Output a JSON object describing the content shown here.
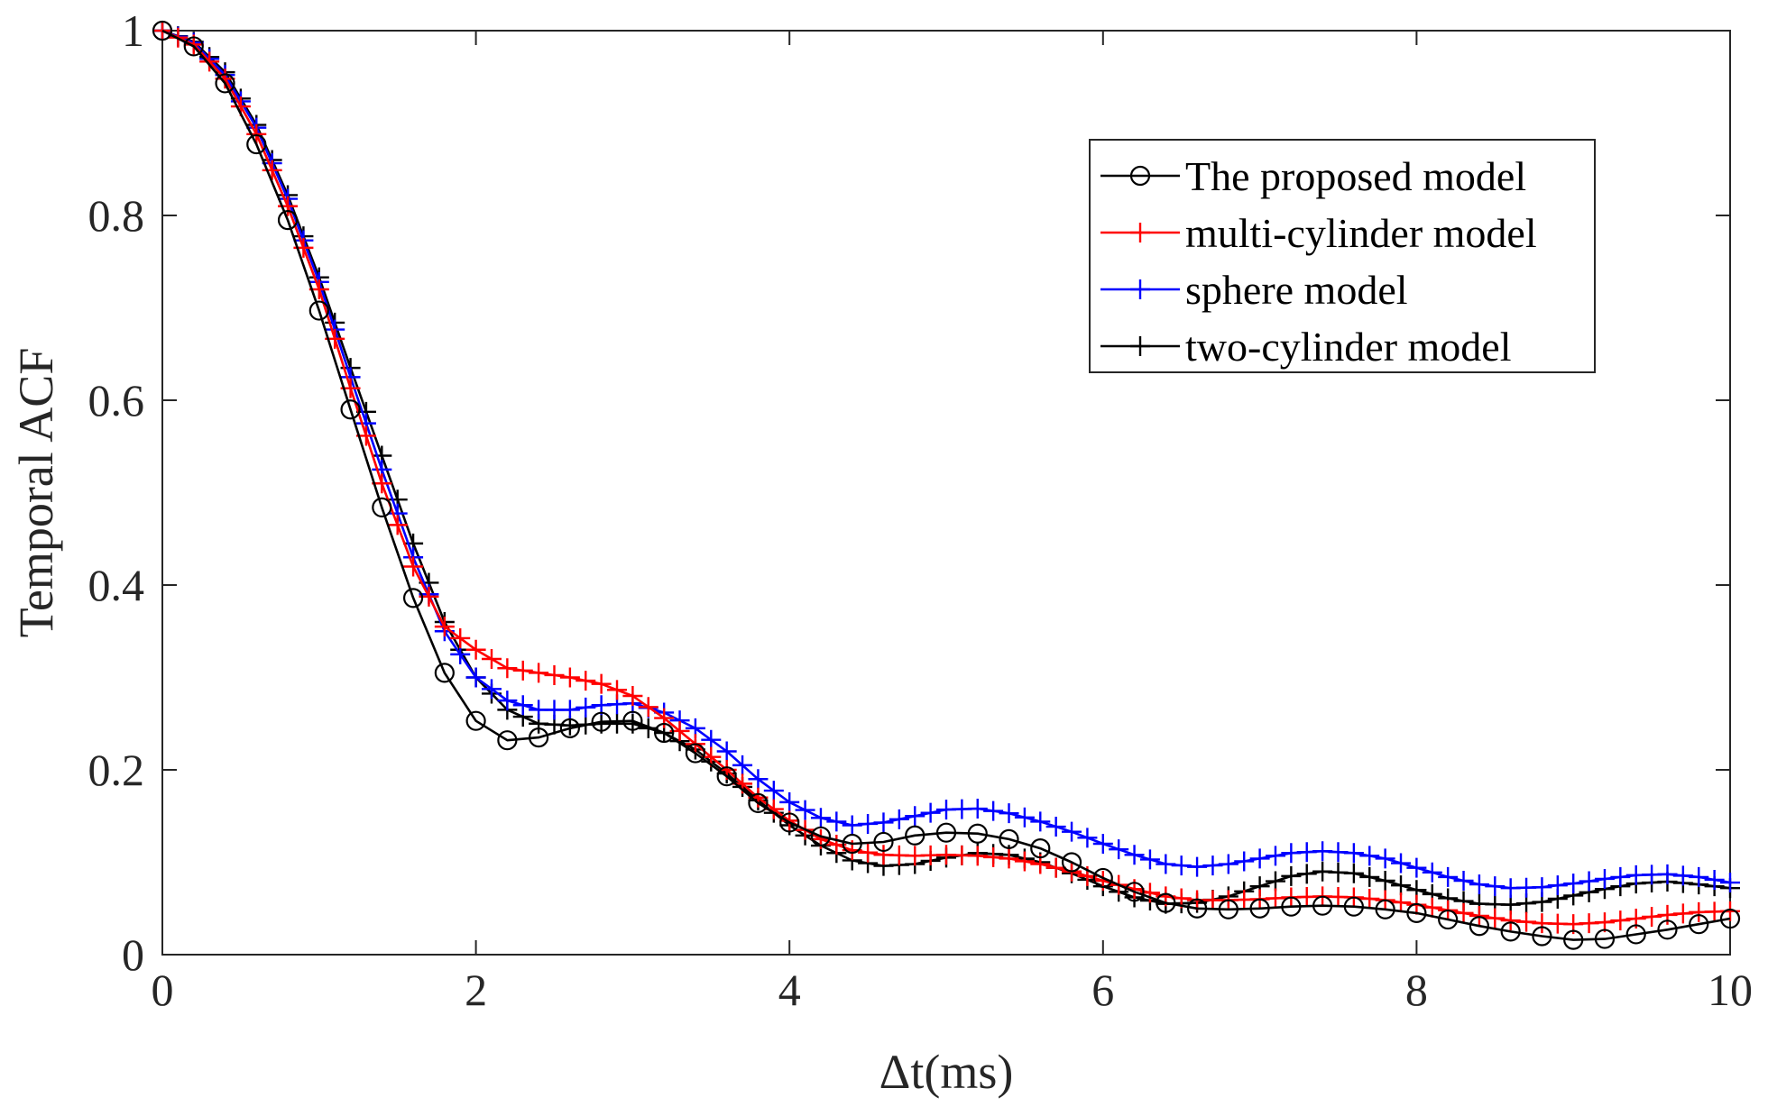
{
  "chart_data": {
    "type": "line",
    "title": "",
    "xlabel": "Δt(ms)",
    "ylabel": "Temporal ACF",
    "xlim": [
      0,
      10
    ],
    "ylim": [
      0,
      1
    ],
    "xticks": [
      0,
      2,
      4,
      6,
      8,
      10
    ],
    "xtick_labels": [
      "0",
      "2",
      "4",
      "6",
      "8",
      "10"
    ],
    "yticks": [
      0,
      0.2,
      0.4,
      0.6,
      0.8,
      1
    ],
    "ytick_labels": [
      "0",
      "0.2",
      "0.4",
      "0.6",
      "0.8",
      "1"
    ],
    "grid": false,
    "box": true,
    "legend_position": "top-right",
    "series": [
      {
        "name": "The proposed model",
        "color": "#000000",
        "marker": "circle",
        "marker_step": 0.2,
        "points": [
          [
            0,
            1
          ],
          [
            0.2,
            0.983
          ],
          [
            0.4,
            0.943
          ],
          [
            0.6,
            0.877
          ],
          [
            0.8,
            0.795
          ],
          [
            1.0,
            0.697
          ],
          [
            1.2,
            0.59
          ],
          [
            1.4,
            0.484
          ],
          [
            1.6,
            0.386
          ],
          [
            1.8,
            0.305
          ],
          [
            2.0,
            0.253
          ],
          [
            2.2,
            0.232
          ],
          [
            2.4,
            0.235
          ],
          [
            2.6,
            0.245
          ],
          [
            2.8,
            0.252
          ],
          [
            3.0,
            0.253
          ],
          [
            3.2,
            0.24
          ],
          [
            3.4,
            0.218
          ],
          [
            3.6,
            0.193
          ],
          [
            3.8,
            0.164
          ],
          [
            4.0,
            0.143
          ],
          [
            4.2,
            0.128
          ],
          [
            4.4,
            0.12
          ],
          [
            4.6,
            0.122
          ],
          [
            4.8,
            0.129
          ],
          [
            5.0,
            0.132
          ],
          [
            5.2,
            0.131
          ],
          [
            5.4,
            0.125
          ],
          [
            5.6,
            0.115
          ],
          [
            5.8,
            0.1
          ],
          [
            6.0,
            0.083
          ],
          [
            6.2,
            0.068
          ],
          [
            6.4,
            0.056
          ],
          [
            6.6,
            0.05
          ],
          [
            6.8,
            0.049
          ],
          [
            7.0,
            0.05
          ],
          [
            7.2,
            0.052
          ],
          [
            7.4,
            0.053
          ],
          [
            7.6,
            0.052
          ],
          [
            7.8,
            0.049
          ],
          [
            8.0,
            0.045
          ],
          [
            8.2,
            0.038
          ],
          [
            8.4,
            0.031
          ],
          [
            8.6,
            0.025
          ],
          [
            8.8,
            0.02
          ],
          [
            9.0,
            0.016
          ],
          [
            9.2,
            0.017
          ],
          [
            9.4,
            0.022
          ],
          [
            9.6,
            0.027
          ],
          [
            9.8,
            0.033
          ],
          [
            10.0,
            0.039
          ]
        ]
      },
      {
        "name": "multi-cylinder model",
        "color": "#ff0000",
        "marker": "plus",
        "marker_step": 0.1,
        "points": [
          [
            0,
            1
          ],
          [
            0.2,
            0.985
          ],
          [
            0.4,
            0.948
          ],
          [
            0.6,
            0.888
          ],
          [
            0.8,
            0.81
          ],
          [
            1.0,
            0.72
          ],
          [
            1.2,
            0.613
          ],
          [
            1.4,
            0.51
          ],
          [
            1.6,
            0.42
          ],
          [
            1.8,
            0.355
          ],
          [
            2.0,
            0.33
          ],
          [
            2.2,
            0.31
          ],
          [
            2.4,
            0.305
          ],
          [
            2.6,
            0.3
          ],
          [
            2.8,
            0.293
          ],
          [
            3.0,
            0.28
          ],
          [
            3.2,
            0.256
          ],
          [
            3.4,
            0.228
          ],
          [
            3.6,
            0.2
          ],
          [
            3.8,
            0.17
          ],
          [
            4.0,
            0.145
          ],
          [
            4.2,
            0.125
          ],
          [
            4.4,
            0.113
          ],
          [
            4.6,
            0.108
          ],
          [
            4.8,
            0.107
          ],
          [
            5.0,
            0.108
          ],
          [
            5.2,
            0.107
          ],
          [
            5.4,
            0.104
          ],
          [
            5.6,
            0.098
          ],
          [
            5.8,
            0.09
          ],
          [
            6.0,
            0.08
          ],
          [
            6.2,
            0.071
          ],
          [
            6.4,
            0.063
          ],
          [
            6.6,
            0.059
          ],
          [
            6.8,
            0.059
          ],
          [
            7.0,
            0.06
          ],
          [
            7.2,
            0.062
          ],
          [
            7.4,
            0.063
          ],
          [
            7.6,
            0.062
          ],
          [
            7.8,
            0.059
          ],
          [
            8.0,
            0.054
          ],
          [
            8.2,
            0.048
          ],
          [
            8.4,
            0.042
          ],
          [
            8.6,
            0.037
          ],
          [
            8.8,
            0.034
          ],
          [
            9.0,
            0.033
          ],
          [
            9.2,
            0.035
          ],
          [
            9.4,
            0.039
          ],
          [
            9.6,
            0.043
          ],
          [
            9.8,
            0.046
          ],
          [
            10.0,
            0.047
          ]
        ]
      },
      {
        "name": "sphere model",
        "color": "#0000ff",
        "marker": "plus",
        "marker_step": 0.1,
        "points": [
          [
            0,
            1
          ],
          [
            0.2,
            0.987
          ],
          [
            0.4,
            0.952
          ],
          [
            0.6,
            0.895
          ],
          [
            0.8,
            0.818
          ],
          [
            1.0,
            0.728
          ],
          [
            1.2,
            0.625
          ],
          [
            1.4,
            0.525
          ],
          [
            1.6,
            0.43
          ],
          [
            1.8,
            0.35
          ],
          [
            2.0,
            0.3
          ],
          [
            2.2,
            0.275
          ],
          [
            2.4,
            0.265
          ],
          [
            2.6,
            0.265
          ],
          [
            2.8,
            0.27
          ],
          [
            3.0,
            0.272
          ],
          [
            3.2,
            0.262
          ],
          [
            3.4,
            0.245
          ],
          [
            3.6,
            0.22
          ],
          [
            3.8,
            0.19
          ],
          [
            4.0,
            0.165
          ],
          [
            4.2,
            0.148
          ],
          [
            4.4,
            0.14
          ],
          [
            4.6,
            0.143
          ],
          [
            4.8,
            0.15
          ],
          [
            5.0,
            0.157
          ],
          [
            5.2,
            0.158
          ],
          [
            5.4,
            0.153
          ],
          [
            5.6,
            0.144
          ],
          [
            5.8,
            0.133
          ],
          [
            6.0,
            0.12
          ],
          [
            6.2,
            0.108
          ],
          [
            6.4,
            0.098
          ],
          [
            6.6,
            0.095
          ],
          [
            6.8,
            0.098
          ],
          [
            7.0,
            0.104
          ],
          [
            7.2,
            0.11
          ],
          [
            7.4,
            0.112
          ],
          [
            7.6,
            0.11
          ],
          [
            7.8,
            0.104
          ],
          [
            8.0,
            0.094
          ],
          [
            8.2,
            0.084
          ],
          [
            8.4,
            0.076
          ],
          [
            8.6,
            0.072
          ],
          [
            8.8,
            0.073
          ],
          [
            9.0,
            0.077
          ],
          [
            9.2,
            0.082
          ],
          [
            9.4,
            0.086
          ],
          [
            9.6,
            0.087
          ],
          [
            9.8,
            0.084
          ],
          [
            10.0,
            0.078
          ]
        ]
      },
      {
        "name": "two-cylinder model",
        "color": "#000000",
        "marker": "plus",
        "marker_step": 0.1,
        "points": [
          [
            0,
            1
          ],
          [
            0.2,
            0.988
          ],
          [
            0.4,
            0.955
          ],
          [
            0.6,
            0.898
          ],
          [
            0.8,
            0.822
          ],
          [
            1.0,
            0.733
          ],
          [
            1.2,
            0.635
          ],
          [
            1.4,
            0.54
          ],
          [
            1.6,
            0.445
          ],
          [
            1.8,
            0.36
          ],
          [
            2.0,
            0.3
          ],
          [
            2.2,
            0.265
          ],
          [
            2.4,
            0.25
          ],
          [
            2.6,
            0.248
          ],
          [
            2.8,
            0.25
          ],
          [
            3.0,
            0.25
          ],
          [
            3.2,
            0.24
          ],
          [
            3.4,
            0.222
          ],
          [
            3.6,
            0.196
          ],
          [
            3.8,
            0.167
          ],
          [
            4.0,
            0.14
          ],
          [
            4.2,
            0.118
          ],
          [
            4.4,
            0.102
          ],
          [
            4.6,
            0.096
          ],
          [
            4.8,
            0.098
          ],
          [
            5.0,
            0.105
          ],
          [
            5.2,
            0.11
          ],
          [
            5.4,
            0.108
          ],
          [
            5.6,
            0.1
          ],
          [
            5.8,
            0.088
          ],
          [
            6.0,
            0.074
          ],
          [
            6.2,
            0.062
          ],
          [
            6.4,
            0.055
          ],
          [
            6.6,
            0.056
          ],
          [
            6.8,
            0.063
          ],
          [
            7.0,
            0.074
          ],
          [
            7.2,
            0.085
          ],
          [
            7.4,
            0.09
          ],
          [
            7.6,
            0.088
          ],
          [
            7.8,
            0.08
          ],
          [
            8.0,
            0.07
          ],
          [
            8.2,
            0.061
          ],
          [
            8.4,
            0.055
          ],
          [
            8.6,
            0.054
          ],
          [
            8.8,
            0.057
          ],
          [
            9.0,
            0.064
          ],
          [
            9.2,
            0.071
          ],
          [
            9.4,
            0.077
          ],
          [
            9.6,
            0.079
          ],
          [
            9.8,
            0.076
          ],
          [
            10.0,
            0.072
          ]
        ]
      }
    ]
  }
}
